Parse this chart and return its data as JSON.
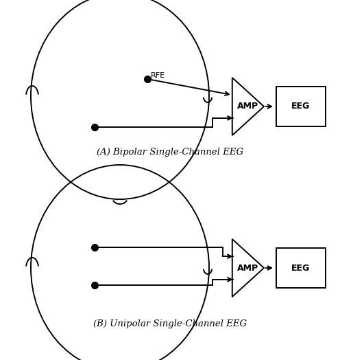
{
  "bg_color": "#ffffff",
  "line_color": "#000000",
  "title_A": "(A) Bipolar Single-Channel EEG",
  "title_B": "(B) Unipolar Single-Channel EEG",
  "amp_label": "AMP",
  "eeg_label": "EEG",
  "rfe_label": "RFE",
  "label_fontsize": 9,
  "caption_fontsize": 9.5
}
